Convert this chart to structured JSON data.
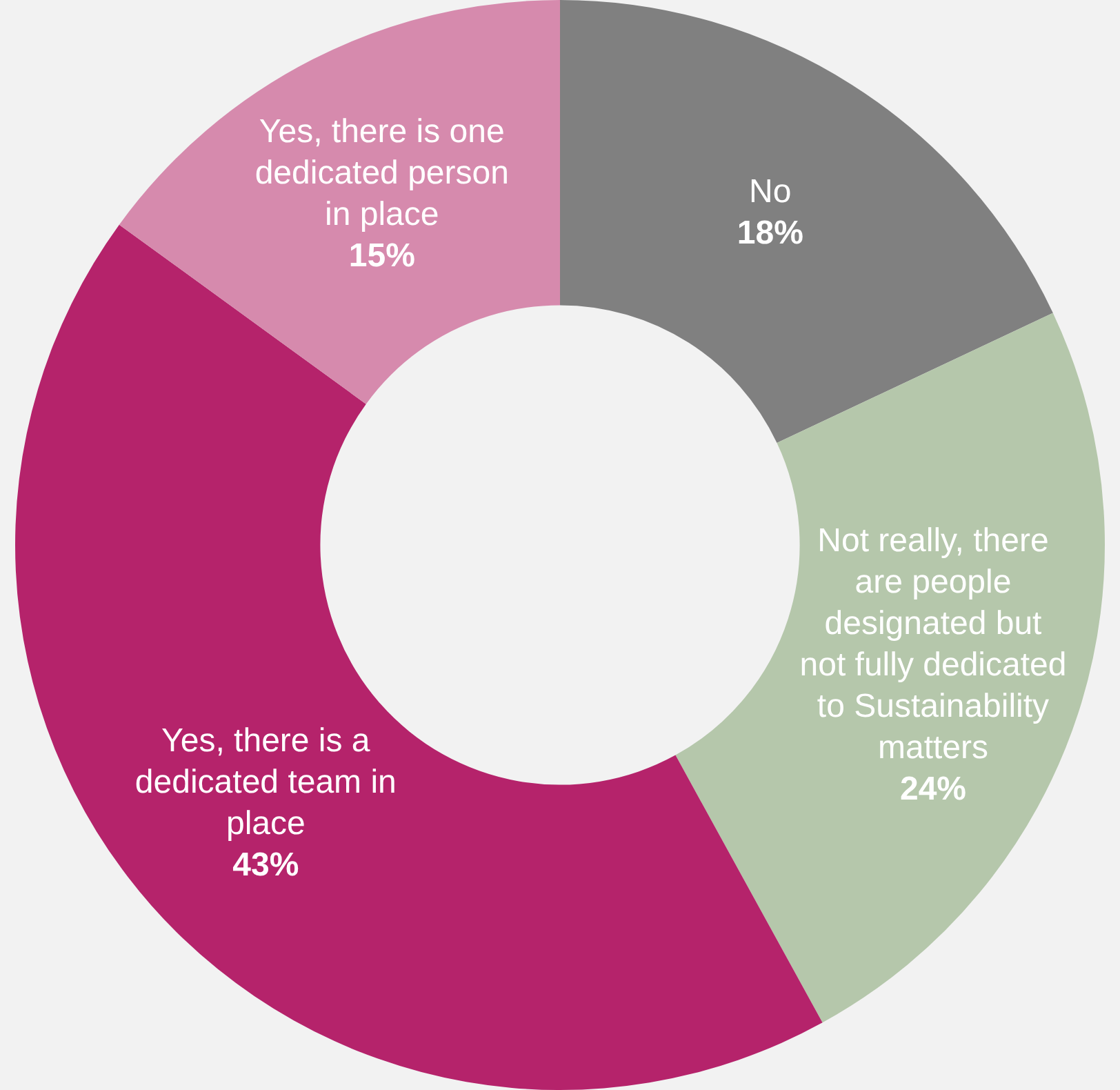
{
  "chart_data": {
    "type": "donut",
    "categories": [
      "No",
      "Not really, there are people designated but not fully dedicated to Sustainability matters",
      "Yes, there is a dedicated team in place",
      "Yes, there is one dedicated person in place"
    ],
    "values": [
      18,
      24,
      43,
      15
    ],
    "value_labels": [
      "18%",
      "24%",
      "43%",
      "15%"
    ],
    "colors": [
      "#808080",
      "#b5c7ab",
      "#b5236b",
      "#d68aad"
    ],
    "legend": false
  }
}
